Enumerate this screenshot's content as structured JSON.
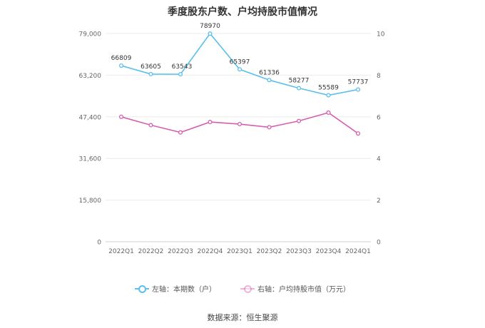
{
  "chart_data": {
    "type": "line",
    "title": "季度股东户数、户均持股市值情况",
    "categories": [
      "2022Q1",
      "2022Q2",
      "2022Q3",
      "2022Q4",
      "2023Q1",
      "2023Q2",
      "2023Q3",
      "2023Q4",
      "2024Q1"
    ],
    "series": [
      {
        "name": "左轴：本期数（户）",
        "axis": "left",
        "color": "#5bc0eb",
        "values": [
          66809,
          63605,
          63543,
          78970,
          65397,
          61336,
          58277,
          55589,
          57737
        ],
        "data_labels": [
          "66809",
          "63605",
          "63543",
          "78970",
          "65397",
          "61336",
          "58277",
          "55589",
          "57737"
        ]
      },
      {
        "name": "右轴：户均持股市值（万元）",
        "axis": "right",
        "color": "#d65fb0",
        "values": [
          6.0,
          5.6,
          5.25,
          5.75,
          5.65,
          5.5,
          5.8,
          6.2,
          5.2
        ]
      }
    ],
    "left_axis": {
      "min": 0,
      "max": 79000,
      "ticks": [
        0,
        15800,
        31600,
        47400,
        63200,
        79000
      ],
      "tick_labels": [
        "0",
        "15,800",
        "31,600",
        "47,400",
        "63,200",
        "79,000"
      ]
    },
    "right_axis": {
      "min": 0,
      "max": 10,
      "ticks": [
        0,
        2,
        4,
        6,
        8,
        10
      ],
      "tick_labels": [
        "0",
        "2",
        "4",
        "6",
        "8",
        "10"
      ]
    },
    "grid": true,
    "legend_position": "bottom"
  },
  "source": "数据来源：恒生聚源"
}
